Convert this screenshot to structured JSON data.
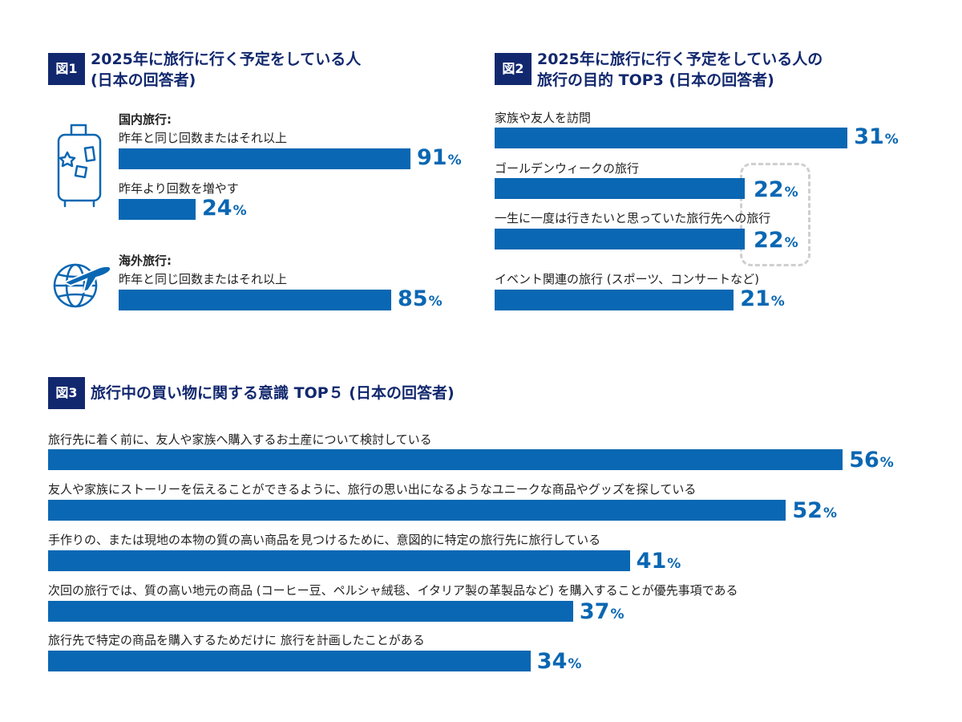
{
  "colors": {
    "navy": "#12286e",
    "bar": "#0a67b3",
    "dash": "#cfcfcf"
  },
  "icons": {
    "luggage": "suitcase-icon",
    "travel": "globe-airplane-icon"
  },
  "panels": {
    "fig1": {
      "tag": "図1",
      "title_line1": "2025年に旅行に行く予定をしている人",
      "title_line2": "(日本の回答者)",
      "domestic_header": "国内旅行:",
      "overseas_header": "海外旅行:"
    },
    "fig2": {
      "tag": "図2",
      "title_line1": "2025年に旅行に行く予定をしている人の",
      "title_line2": "旅行の目的 TOP3 (日本の回答者)"
    },
    "fig3": {
      "tag": "図3",
      "title_line1": "旅行中の買い物に関する意識 TOP５ (日本の回答者)"
    }
  },
  "chart_data": [
    {
      "type": "bar",
      "title": "2025年に旅行に行く予定をしている人 (日本の回答者)",
      "unit": "%",
      "groups": [
        "国内旅行:",
        "国内旅行:",
        "海外旅行:"
      ],
      "categories": [
        "昨年と同じ回数またはそれ以上",
        "昨年より回数を増やす",
        "昨年と同じ回数またはそれ以上"
      ],
      "values": [
        91,
        24,
        85
      ]
    },
    {
      "type": "bar",
      "title": "2025年に旅行に行く予定をしている人の旅行の目的 TOP3 (日本の回答者)",
      "unit": "%",
      "categories": [
        "家族や友人を訪問",
        "ゴールデンウィークの旅行",
        "一生に一度は行きたいと思っていた旅行先への旅行",
        "イベント関連の旅行 (スポーツ、コンサートなど)"
      ],
      "values": [
        31,
        22,
        22,
        21
      ],
      "highlighted": [
        1,
        2
      ]
    },
    {
      "type": "bar",
      "title": "旅行中の買い物に関する意識 TOP５ (日本の回答者)",
      "unit": "%",
      "categories": [
        "旅行先に着く前に、友人や家族へ購入するお土産について検討している",
        "友人や家族にストーリーを伝えることができるように、旅行の思い出になるようなユニークな商品やグッズを探している",
        "手作りの、または現地の本物の質の高い商品を見つけるために、意図的に特定の旅行先に旅行している",
        "次回の旅行では、質の高い地元の商品 (コーヒー豆、ペルシャ絨毯、イタリア製の革製品など) を購入することが優先事項である",
        "旅行先で特定の商品を購入するためだけに 旅行を計画したことがある"
      ],
      "values": [
        56,
        52,
        41,
        37,
        34
      ]
    }
  ]
}
